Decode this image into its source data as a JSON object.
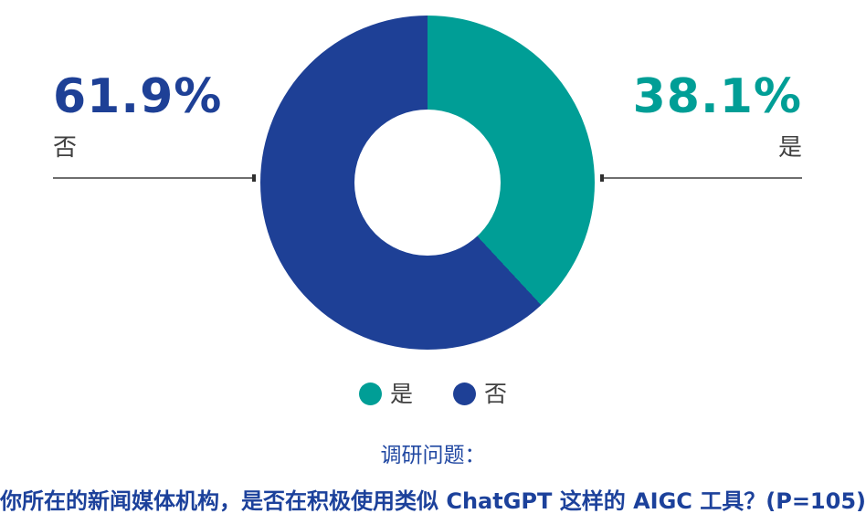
{
  "colors": {
    "teal": "#009E96",
    "blue": "#1E4096",
    "label_gray": "#404040",
    "line_gray": "#6E6E6E",
    "tick_dark": "#2F2F2F",
    "survey_blue": "#2148A2",
    "question_blue": "#1C419B",
    "background": "#FFFFFF"
  },
  "chart_data": {
    "type": "pie",
    "subtype": "donut",
    "categories": [
      "是",
      "否"
    ],
    "values": [
      38.1,
      61.9
    ],
    "unit": "%",
    "colors": [
      "#009E96",
      "#1E4096"
    ],
    "start_angle": "12-oclock-clockwise",
    "hole_ratio": 0.44,
    "legend_position": "bottom",
    "data_labels": [
      {
        "category": "是",
        "text": "38.1%",
        "position": "right"
      },
      {
        "category": "否",
        "text": "61.9%",
        "position": "left"
      }
    ],
    "title": "你所在的新闻媒体机构，是否在积极使用类似 ChatGPT 这样的 AIGC 工具？(P=105)",
    "n_label": "P=105"
  },
  "callouts": {
    "left": {
      "percent": "61.9%",
      "label": "否"
    },
    "right": {
      "percent": "38.1%",
      "label": "是"
    }
  },
  "legend": {
    "items": [
      {
        "label": "是",
        "color": "#009E96"
      },
      {
        "label": "否",
        "color": "#1E4096"
      }
    ]
  },
  "footer": {
    "survey_label": "调研问题：",
    "question": "你所在的新闻媒体机构，是否在积极使用类似 ChatGPT 这样的 AIGC 工具？(P=105)"
  }
}
